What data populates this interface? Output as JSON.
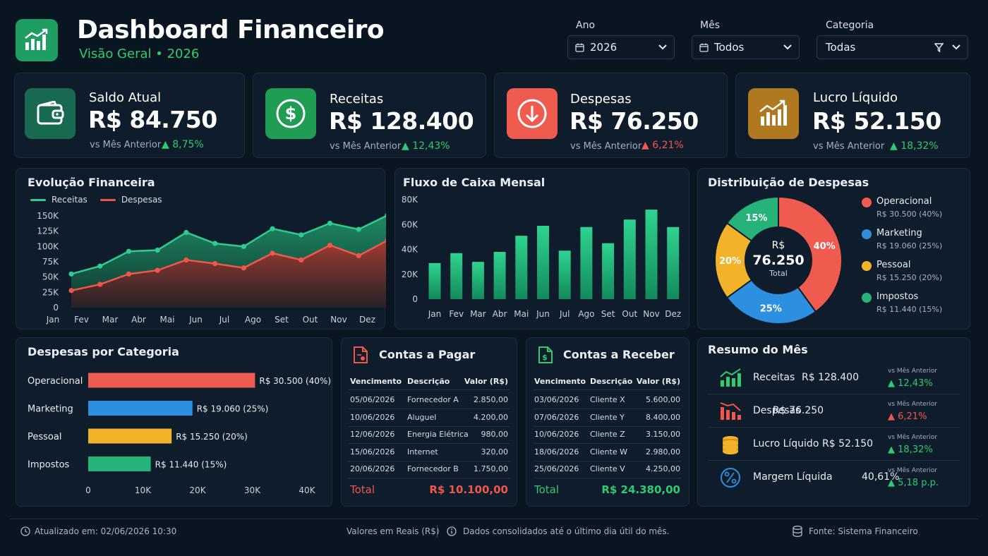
{
  "header": {
    "title": "Dashboard Financeiro",
    "subtitle": "Visão Geral • 2026",
    "filters": [
      {
        "label": "Ano",
        "value": "2026",
        "icon": "calendar-icon"
      },
      {
        "label": "Mês",
        "value": "Todos",
        "icon": "calendar-icon"
      },
      {
        "label": "Categoria",
        "value": "Todas",
        "icon": "filter-icon"
      }
    ]
  },
  "kpis": [
    {
      "label": "Saldo Atual",
      "value": "R$ 84.750",
      "compare": "vs Mês Anterior",
      "delta": "▲ 8,75%",
      "direction": "up",
      "icon": "wallet-icon",
      "color": "#17694f"
    },
    {
      "label": "Receitas",
      "value": "R$ 128.400",
      "compare": "vs Mês Anterior",
      "delta": "▲ 12,43%",
      "direction": "up",
      "icon": "dollar-icon",
      "color": "#1f9d55"
    },
    {
      "label": "Despesas",
      "value": "R$ 76.250",
      "compare": "vs Mês Anterior",
      "delta": "▲ 6,21%",
      "direction": "down",
      "icon": "arrow-down-icon",
      "color": "#f05b4f"
    },
    {
      "label": "Lucro Líquido",
      "value": "R$ 52.150",
      "compare": "vs Mês Anterior",
      "delta": "▲ 18,32%",
      "direction": "up",
      "icon": "growth-chart-icon",
      "color": "#b0781f"
    }
  ],
  "evolucao": {
    "title": "Evolução Financeira",
    "legend": [
      {
        "name": "Receitas",
        "color": "#2ecc8f"
      },
      {
        "name": "Despesas",
        "color": "#f0574a"
      }
    ]
  },
  "fluxo": {
    "title": "Fluxo de Caixa Mensal"
  },
  "distribuicao": {
    "title": "Distribuição de Despesas",
    "center_label": "R$",
    "center_value": "76.250",
    "center_sub": "Total",
    "items": [
      {
        "name": "Operacional",
        "detail": "R$ 30.500 (40%)",
        "pct_label": "40%",
        "pct": 40,
        "color": "#f05b4f"
      },
      {
        "name": "Marketing",
        "detail": "R$ 19.060 (25%)",
        "pct_label": "25%",
        "pct": 25,
        "color": "#2d8fe0"
      },
      {
        "name": "Pessoal",
        "detail": "R$ 15.250 (20%)",
        "pct_label": "20%",
        "pct": 20,
        "color": "#f2b32b"
      },
      {
        "name": "Impostos",
        "detail": "R$ 11.440 (15%)",
        "pct_label": "15%",
        "pct": 15,
        "color": "#25b37a"
      }
    ]
  },
  "categorias": {
    "title": "Despesas por Categoria",
    "bar_labels": [
      "R$ 30.500 (40%)",
      "R$ 19.060 (25%)",
      "R$ 15.250 (20%)",
      "R$ 11.440 (15%)"
    ]
  },
  "pagar": {
    "title": "Contas a Pagar",
    "icon": "invoice-icon",
    "headers": [
      "Vencimento",
      "Descrição",
      "Valor (R$)"
    ],
    "rows": [
      [
        "05/06/2026",
        "Fornecedor A",
        "2.850,00"
      ],
      [
        "10/06/2026",
        "Aluguel",
        "4.200,00"
      ],
      [
        "12/06/2026",
        "Energia Elétrica",
        "980,00"
      ],
      [
        "15/06/2026",
        "Internet",
        "320,00"
      ],
      [
        "20/06/2026",
        "Fornecedor B",
        "1.750,00"
      ]
    ],
    "total_label": "Total",
    "total_value": "R$ 10.100,00"
  },
  "receber": {
    "title": "Contas a Receber",
    "icon": "receipt-dollar-icon",
    "headers": [
      "Vencimento",
      "Descrição",
      "Valor (R$)"
    ],
    "rows": [
      [
        "03/06/2026",
        "Cliente X",
        "5.600,00"
      ],
      [
        "07/06/2026",
        "Cliente Y",
        "8.400,00"
      ],
      [
        "10/06/2026",
        "Cliente Z",
        "3.150,00"
      ],
      [
        "18/06/2026",
        "Cliente W",
        "2.980,00"
      ],
      [
        "25/06/2026",
        "Cliente V",
        "4.250,00"
      ]
    ],
    "total_label": "Total",
    "total_value": "R$ 24.380,00"
  },
  "resumo": {
    "title": "Resumo do Mês",
    "items": [
      {
        "label": "Receitas",
        "value": "R$ 128.400",
        "compare": "vs Mês Anterior",
        "delta": "▲ 12,43%",
        "direction": "up",
        "icon": "bar-up-icon"
      },
      {
        "label": "Despesas",
        "value": "R$ 76.250",
        "compare": "vs Mês Anterior",
        "delta": "▲ 6,21%",
        "direction": "down",
        "icon": "bar-down-icon"
      },
      {
        "label": "Lucro Líquido",
        "value": "R$ 52.150",
        "compare": "vs Mês Anterior",
        "delta": "▲ 18,32%",
        "direction": "up",
        "icon": "coins-icon"
      },
      {
        "label": "Margem Líquida",
        "value": "40,61%",
        "compare": "vs Mês Anterior",
        "delta": "▲ 5,18 p.p.",
        "direction": "up",
        "icon": "percent-icon"
      }
    ]
  },
  "footer": {
    "updated": "Atualizado em: 02/06/2026 10:30",
    "currency": "Valores em Reais (R$)",
    "note": "Dados consolidados até o último dia útil do mês.",
    "source": "Fonte: Sistema Financeiro"
  },
  "chart_data": [
    {
      "type": "area",
      "title": "Evolução Financeira",
      "x": [
        "Jan",
        "Fev",
        "Mar",
        "Abr",
        "Mai",
        "Jun",
        "Jul",
        "Ago",
        "Set",
        "Out",
        "Nov",
        "Dez"
      ],
      "series": [
        {
          "name": "Receitas",
          "values": [
            55000,
            68000,
            92000,
            94000,
            123000,
            105000,
            100000,
            129000,
            119000,
            138000,
            128000,
            151000
          ]
        },
        {
          "name": "Despesas",
          "values": [
            28000,
            38000,
            55000,
            61000,
            78000,
            72000,
            65000,
            89000,
            78000,
            102000,
            85000,
            110000
          ]
        }
      ],
      "y_ticks": [
        "0",
        "25K",
        "50K",
        "75K",
        "100K",
        "125K",
        "150K"
      ],
      "ylim": [
        0,
        150000
      ],
      "legend": "top-left",
      "grid": false
    },
    {
      "type": "bar",
      "title": "Fluxo de Caixa Mensal",
      "categories": [
        "Jan",
        "Fev",
        "Mar",
        "Abr",
        "Mai",
        "Jun",
        "Jul",
        "Ago",
        "Set",
        "Out",
        "Nov",
        "Dez"
      ],
      "values": [
        29000,
        37000,
        30000,
        38000,
        51000,
        59000,
        39000,
        58000,
        45000,
        64000,
        72000,
        58000
      ],
      "y_ticks": [
        "0",
        "20K",
        "40K",
        "60K",
        "80K"
      ],
      "ylim": [
        0,
        80000
      ],
      "grid": false
    },
    {
      "type": "pie",
      "title": "Distribuição de Despesas",
      "categories": [
        "Operacional",
        "Marketing",
        "Pessoal",
        "Impostos"
      ],
      "values": [
        40,
        25,
        20,
        15
      ],
      "legend": "right"
    },
    {
      "type": "bar",
      "orientation": "horizontal",
      "title": "Despesas por Categoria",
      "categories": [
        "Operacional",
        "Marketing",
        "Pessoal",
        "Impostos"
      ],
      "values": [
        30500,
        19060,
        15250,
        11440
      ],
      "x_ticks": [
        "0",
        "10K",
        "20K",
        "30K",
        "40K"
      ],
      "xlim": [
        0,
        40000
      ]
    }
  ]
}
